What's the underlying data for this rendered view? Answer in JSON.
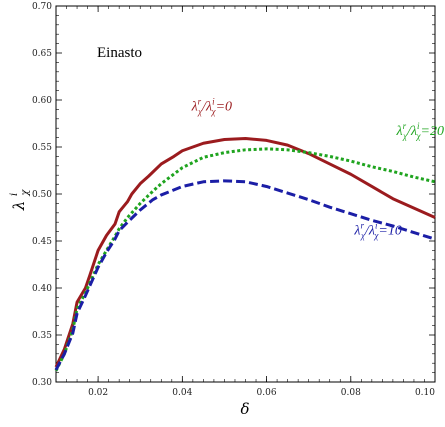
{
  "chart_data": {
    "type": "line",
    "title": "Einasto",
    "xlabel": "δ",
    "ylabel": "λχi",
    "xlim": [
      0.01,
      0.1
    ],
    "ylim": [
      0.3,
      0.7
    ],
    "grid": false,
    "x_ticks": [
      0.02,
      0.04,
      0.06,
      0.08,
      0.1
    ],
    "x_tick_labels": [
      "0.02",
      "0.04",
      "0.06",
      "0.08",
      "0.10"
    ],
    "y_ticks": [
      0.3,
      0.35,
      0.4,
      0.45,
      0.5,
      0.55,
      0.6,
      0.65,
      0.7
    ],
    "y_tick_labels": [
      "0.30",
      "0.35",
      "0.40",
      "0.45",
      "0.50",
      "0.55",
      "0.60",
      "0.65",
      "0.70"
    ],
    "series": [
      {
        "name": "λχr/λχi=0",
        "label_main": "λ",
        "label_parts": [
          "r",
          "χ",
          "/λ",
          "i",
          "χ",
          "=0"
        ],
        "color": "#9b1b1e",
        "style": "solid",
        "x": [
          0.01,
          0.012,
          0.014,
          0.015,
          0.017,
          0.018,
          0.02,
          0.022,
          0.024,
          0.025,
          0.027,
          0.028,
          0.03,
          0.032,
          0.035,
          0.038,
          0.04,
          0.045,
          0.05,
          0.055,
          0.06,
          0.065,
          0.07,
          0.075,
          0.08,
          0.085,
          0.09,
          0.095,
          0.1
        ],
        "y": [
          0.316,
          0.335,
          0.362,
          0.385,
          0.4,
          0.413,
          0.44,
          0.456,
          0.468,
          0.481,
          0.492,
          0.5,
          0.511,
          0.519,
          0.532,
          0.54,
          0.546,
          0.554,
          0.558,
          0.559,
          0.557,
          0.552,
          0.543,
          0.532,
          0.521,
          0.508,
          0.495,
          0.485,
          0.475
        ]
      },
      {
        "name": "λχr/λχi=20",
        "label_main": "λ",
        "label_parts": [
          "r",
          "χ",
          "/λ",
          "i",
          "χ",
          "=20"
        ],
        "color": "#1fa41f",
        "style": "dotted",
        "x": [
          0.01,
          0.012,
          0.014,
          0.015,
          0.017,
          0.018,
          0.02,
          0.022,
          0.024,
          0.025,
          0.027,
          0.03,
          0.033,
          0.035,
          0.04,
          0.045,
          0.05,
          0.055,
          0.06,
          0.065,
          0.07,
          0.075,
          0.08,
          0.085,
          0.09,
          0.095,
          0.1
        ],
        "y": [
          0.312,
          0.33,
          0.356,
          0.378,
          0.395,
          0.405,
          0.425,
          0.44,
          0.455,
          0.463,
          0.475,
          0.49,
          0.503,
          0.511,
          0.528,
          0.539,
          0.544,
          0.547,
          0.548,
          0.547,
          0.544,
          0.54,
          0.535,
          0.529,
          0.524,
          0.518,
          0.513
        ]
      },
      {
        "name": "λχr/λχi=10",
        "label_main": "λ",
        "label_parts": [
          "r",
          "χ",
          "/λ",
          "i",
          "χ",
          "=10"
        ],
        "color": "#1b1ea6",
        "style": "dashed",
        "x": [
          0.01,
          0.012,
          0.014,
          0.015,
          0.017,
          0.018,
          0.02,
          0.022,
          0.024,
          0.025,
          0.027,
          0.03,
          0.033,
          0.035,
          0.04,
          0.045,
          0.05,
          0.055,
          0.06,
          0.065,
          0.07,
          0.075,
          0.08,
          0.085,
          0.09,
          0.095,
          0.1
        ],
        "y": [
          0.313,
          0.33,
          0.352,
          0.373,
          0.392,
          0.402,
          0.422,
          0.438,
          0.452,
          0.461,
          0.47,
          0.483,
          0.494,
          0.499,
          0.508,
          0.513,
          0.514,
          0.513,
          0.508,
          0.501,
          0.494,
          0.486,
          0.479,
          0.472,
          0.466,
          0.459,
          0.452
        ]
      }
    ]
  }
}
